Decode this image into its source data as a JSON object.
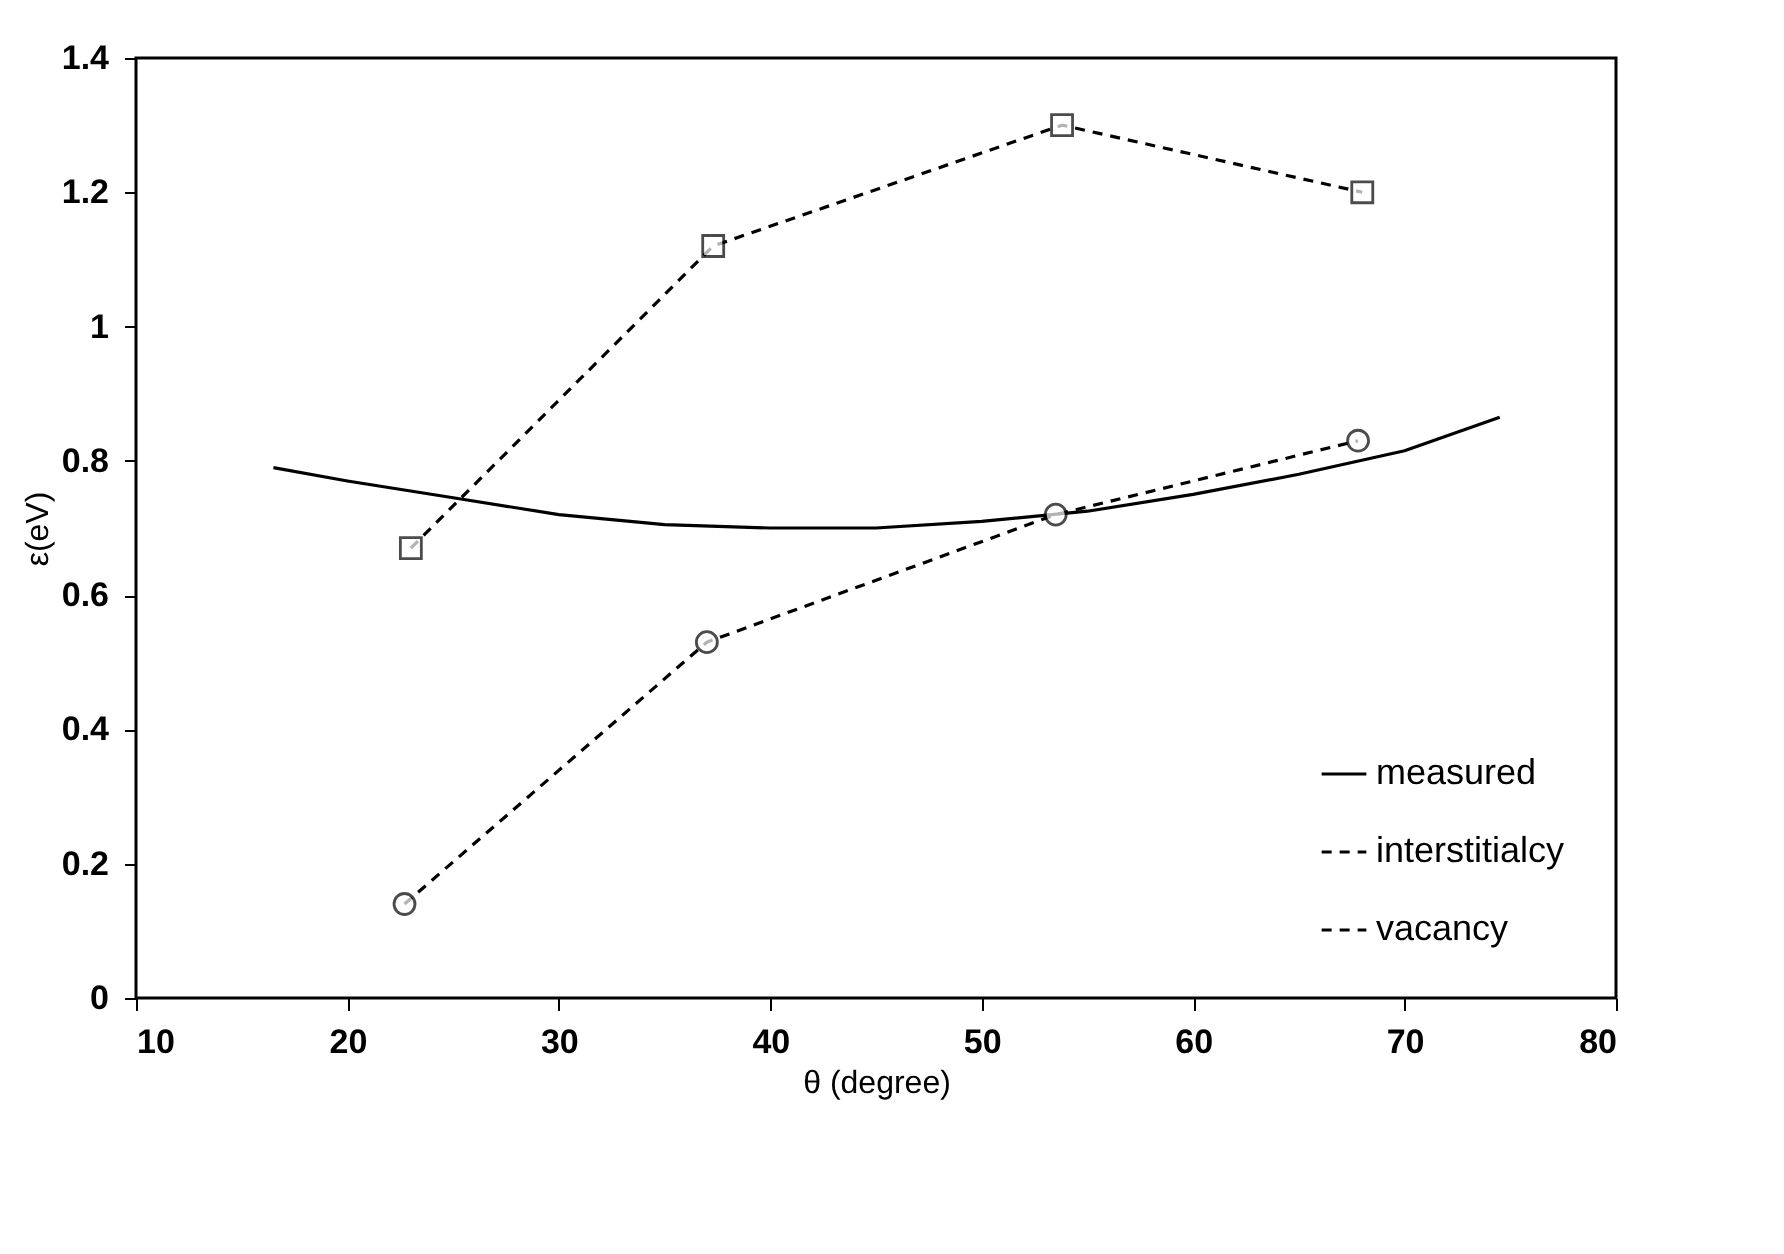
{
  "chart_data": {
    "type": "line",
    "xlabel": "θ (degree)",
    "ylabel": "ε(eV)",
    "xlim": [
      10,
      80
    ],
    "xticks": [
      10,
      20,
      30,
      40,
      50,
      60,
      70,
      80
    ],
    "ylim": [
      0,
      1.4
    ],
    "yticks": [
      0,
      0.2,
      0.4,
      0.6,
      0.8,
      1,
      1.2,
      1.4
    ],
    "grid": false,
    "legend": "bottom right",
    "series": [
      {
        "name": "measured",
        "color": "#000000",
        "line_style": "solid",
        "marker": "none",
        "x": [
          16.5,
          20,
          25,
          30,
          35,
          40,
          45,
          50,
          55,
          60,
          65,
          70,
          74.5
        ],
        "values": [
          0.79,
          0.77,
          0.745,
          0.72,
          0.705,
          0.7,
          0.7,
          0.71,
          0.725,
          0.75,
          0.78,
          0.815,
          0.865
        ]
      },
      {
        "name": "interstitialcy",
        "color": "#000000",
        "line_style": "dashed",
        "marker": "circle",
        "x": [
          22.7,
          37,
          53.5,
          67.8
        ],
        "values": [
          0.14,
          0.53,
          0.72,
          0.83
        ]
      },
      {
        "name": "vacancy",
        "color": "#000000",
        "line_style": "dashed",
        "marker": "square",
        "x": [
          23,
          37.3,
          53.8,
          68
        ],
        "values": [
          0.67,
          1.12,
          1.3,
          1.2
        ]
      }
    ]
  }
}
